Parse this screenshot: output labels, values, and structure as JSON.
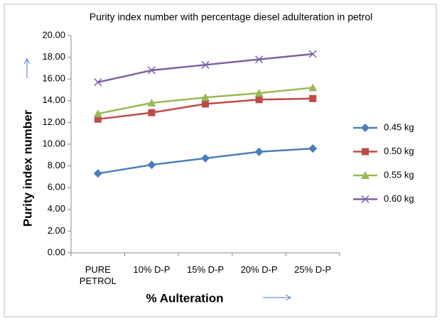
{
  "chart_data": {
    "type": "line",
    "title": "Purity index number  with percentage diesel adulteration in petrol",
    "x_label": "% Aulteration",
    "y_label": "Purity index number",
    "categories": [
      "PURE PETROL",
      "10% D-P",
      "15% D-P",
      "20% D-P",
      "25% D-P"
    ],
    "series": [
      {
        "name": "0.45 kg",
        "color": "#4a7ebb",
        "marker": "diamond",
        "values": [
          7.3,
          8.1,
          8.7,
          9.3,
          9.6
        ]
      },
      {
        "name": "0.50 kg",
        "color": "#be4b48",
        "marker": "square",
        "values": [
          12.3,
          12.9,
          13.7,
          14.1,
          14.2
        ]
      },
      {
        "name": "0.55 kg",
        "color": "#98b954",
        "marker": "triangle",
        "values": [
          12.8,
          13.8,
          14.3,
          14.7,
          15.2
        ]
      },
      {
        "name": "0.60 kg",
        "color": "#7d60a0",
        "marker": "x",
        "values": [
          15.7,
          16.8,
          17.3,
          17.8,
          18.3
        ]
      }
    ],
    "ylim": [
      0,
      20
    ],
    "yticks": [
      {
        "value": 0,
        "label": "0.00"
      },
      {
        "value": 2,
        "label": "2.00"
      },
      {
        "value": 4,
        "label": "4.00"
      },
      {
        "value": 6,
        "label": "6.00"
      },
      {
        "value": 8,
        "label": "8.00"
      },
      {
        "value": 10,
        "label": "10.00"
      },
      {
        "value": 12,
        "label": "12.00"
      },
      {
        "value": 14,
        "label": "14.00"
      },
      {
        "value": 16,
        "label": "16.00"
      },
      {
        "value": 18,
        "label": "18.00"
      },
      {
        "value": 20,
        "label": "20.00"
      }
    ],
    "grid": false,
    "legend": "right"
  }
}
